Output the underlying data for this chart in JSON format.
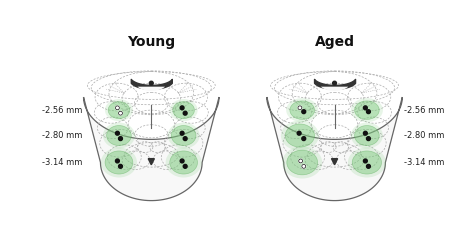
{
  "title_left": "Young",
  "title_right": "Aged",
  "labels_left": [
    "-2.56 mm",
    "-2.80 mm",
    "-3.14 mm"
  ],
  "labels_right": [
    "-2.56 mm",
    "-2.80 mm",
    "-3.14 mm"
  ],
  "bg_color": "#ffffff",
  "brain_line_color": "#666666",
  "dashed_color": "#aaaaaa",
  "green_fill": "#7dc97d",
  "black_dot": "#111111",
  "white_dot": "#ffffff",
  "font_size_title": 10,
  "font_size_label": 6.0
}
